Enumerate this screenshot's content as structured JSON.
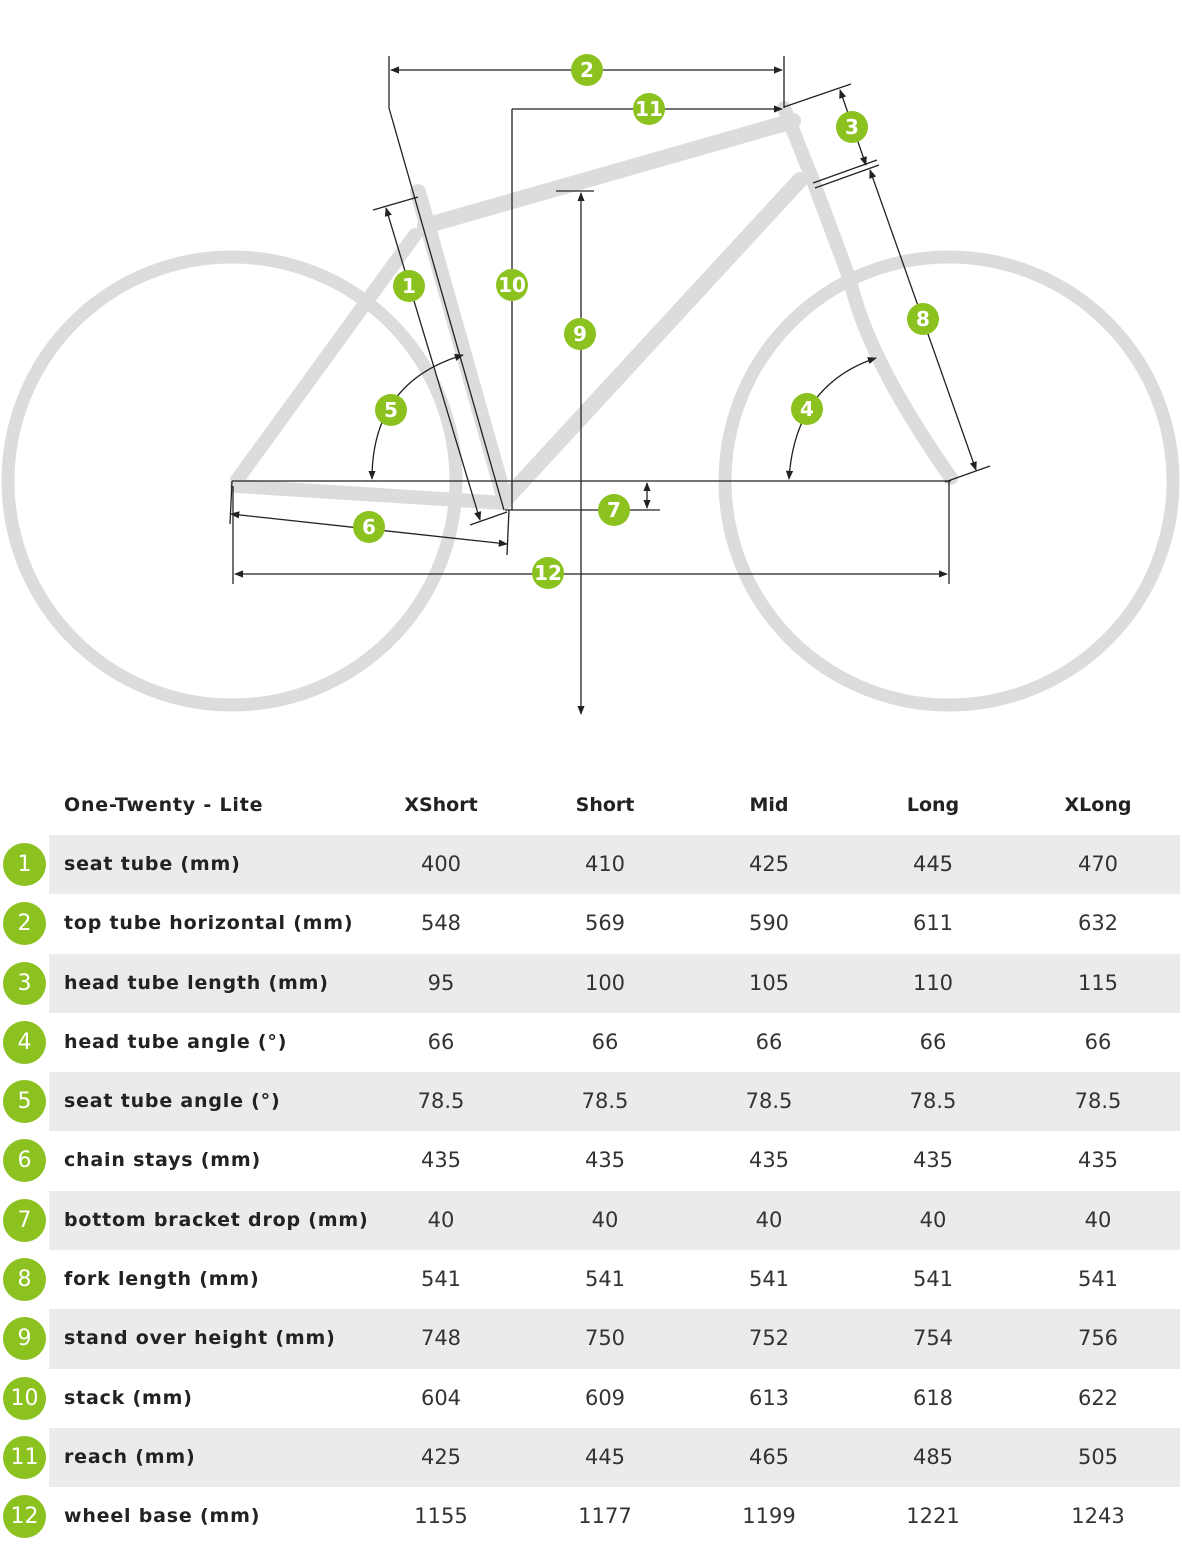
{
  "table": {
    "model": "One-Twenty - Lite",
    "sizes": [
      "XShort",
      "Short",
      "Mid",
      "Long",
      "XLong"
    ],
    "rows": [
      {
        "num": "1",
        "label": "seat tube (mm)",
        "values": [
          "400",
          "410",
          "425",
          "445",
          "470"
        ]
      },
      {
        "num": "2",
        "label": "top tube horizontal (mm)",
        "values": [
          "548",
          "569",
          "590",
          "611",
          "632"
        ]
      },
      {
        "num": "3",
        "label": "head tube length (mm)",
        "values": [
          "95",
          "100",
          "105",
          "110",
          "115"
        ]
      },
      {
        "num": "4",
        "label": "head tube angle (°)",
        "values": [
          "66",
          "66",
          "66",
          "66",
          "66"
        ]
      },
      {
        "num": "5",
        "label": "seat tube angle (°)",
        "values": [
          "78.5",
          "78.5",
          "78.5",
          "78.5",
          "78.5"
        ]
      },
      {
        "num": "6",
        "label": "chain stays (mm)",
        "values": [
          "435",
          "435",
          "435",
          "435",
          "435"
        ]
      },
      {
        "num": "7",
        "label": "bottom bracket drop (mm)",
        "values": [
          "40",
          "40",
          "40",
          "40",
          "40"
        ]
      },
      {
        "num": "8",
        "label": "fork length (mm)",
        "values": [
          "541",
          "541",
          "541",
          "541",
          "541"
        ]
      },
      {
        "num": "9",
        "label": "stand over height (mm)",
        "values": [
          "748",
          "750",
          "752",
          "754",
          "756"
        ]
      },
      {
        "num": "10",
        "label": "stack (mm)",
        "values": [
          "604",
          "609",
          "613",
          "618",
          "622"
        ]
      },
      {
        "num": "11",
        "label": "reach (mm)",
        "values": [
          "425",
          "445",
          "465",
          "485",
          "505"
        ]
      },
      {
        "num": "12",
        "label": "wheel base (mm)",
        "values": [
          "1155",
          "1177",
          "1199",
          "1221",
          "1243"
        ]
      }
    ]
  },
  "diagram": {
    "badges": [
      "1",
      "2",
      "3",
      "4",
      "5",
      "6",
      "7",
      "8",
      "9",
      "10",
      "11",
      "12"
    ]
  },
  "colors": {
    "accent": "#8cc21f",
    "frame": "#dcdcdc",
    "row_shade": "#ebebeb"
  }
}
